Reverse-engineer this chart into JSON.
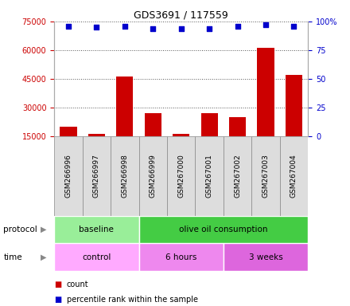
{
  "title": "GDS3691 / 117559",
  "samples": [
    "GSM266996",
    "GSM266997",
    "GSM266998",
    "GSM266999",
    "GSM267000",
    "GSM267001",
    "GSM267002",
    "GSM267003",
    "GSM267004"
  ],
  "counts": [
    20000,
    16000,
    46000,
    27000,
    16000,
    27000,
    25000,
    61000,
    47000
  ],
  "percentile_ranks": [
    96,
    95,
    96,
    94,
    94,
    94,
    96,
    97,
    96
  ],
  "bar_color": "#cc0000",
  "dot_color": "#0000cc",
  "ylim_left": [
    15000,
    75000
  ],
  "ylim_right": [
    0,
    100
  ],
  "yticks_left": [
    15000,
    30000,
    45000,
    60000,
    75000
  ],
  "yticks_right": [
    0,
    25,
    50,
    75,
    100
  ],
  "ytick_labels_left": [
    "15000",
    "30000",
    "45000",
    "60000",
    "75000"
  ],
  "ytick_labels_right": [
    "0",
    "25",
    "50",
    "75",
    "100%"
  ],
  "protocol_labels": [
    {
      "text": "baseline",
      "start": 0,
      "end": 3,
      "color": "#99ee99"
    },
    {
      "text": "olive oil consumption",
      "start": 3,
      "end": 9,
      "color": "#44cc44"
    }
  ],
  "time_labels": [
    {
      "text": "control",
      "start": 0,
      "end": 3,
      "color": "#ffaaff"
    },
    {
      "text": "6 hours",
      "start": 3,
      "end": 6,
      "color": "#ee88ee"
    },
    {
      "text": "3 weeks",
      "start": 6,
      "end": 9,
      "color": "#dd66dd"
    }
  ],
  "legend_count_color": "#cc0000",
  "legend_dot_color": "#0000cc",
  "legend_count_label": "count",
  "legend_percentile_label": "percentile rank within the sample",
  "xlabel_protocol": "protocol",
  "xlabel_time": "time",
  "background_color": "#ffffff",
  "plot_bg_color": "#ffffff",
  "grid_color": "#555555",
  "xtick_bg_color": "#dddddd",
  "xtick_border_color": "#888888"
}
